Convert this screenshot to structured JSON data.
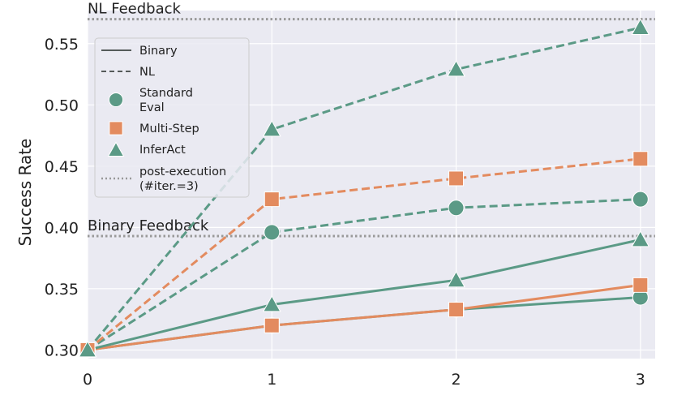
{
  "chart_data": {
    "type": "line",
    "ylabel": "Success Rate",
    "xlabel": "",
    "x": [
      0,
      1,
      2,
      3
    ],
    "xticks": [
      "0",
      "1",
      "2",
      "3"
    ],
    "xlim": [
      0,
      3.08
    ],
    "ylim": [
      0.293,
      0.577
    ],
    "yticks": [
      0.3,
      0.35,
      0.4,
      0.45,
      0.5,
      0.55
    ],
    "ytick_labels": [
      "0.30",
      "0.35",
      "0.40",
      "0.45",
      "0.50",
      "0.55"
    ],
    "grid": true,
    "legend_position": "top-left",
    "colors": {
      "green": "#5b9a86",
      "orange": "#e38b5f",
      "reference": "#999999",
      "background": "#eaeaf2"
    },
    "series": [
      {
        "method": "Standard Eval",
        "feedback": "Binary",
        "marker": "circle",
        "color": "#5b9a86",
        "style": "solid",
        "values": [
          0.3,
          0.32,
          0.333,
          0.343
        ]
      },
      {
        "method": "Multi-Step",
        "feedback": "Binary",
        "marker": "square",
        "color": "#e38b5f",
        "style": "solid",
        "values": [
          0.3,
          0.32,
          0.333,
          0.353
        ]
      },
      {
        "method": "InferAct",
        "feedback": "Binary",
        "marker": "triangle",
        "color": "#5b9a86",
        "style": "solid",
        "values": [
          0.3,
          0.337,
          0.357,
          0.39
        ]
      },
      {
        "method": "Standard Eval",
        "feedback": "NL",
        "marker": "circle",
        "color": "#5b9a86",
        "style": "dashed",
        "values": [
          0.3,
          0.396,
          0.416,
          0.423
        ]
      },
      {
        "method": "Multi-Step",
        "feedback": "NL",
        "marker": "square",
        "color": "#e38b5f",
        "style": "dashed",
        "values": [
          0.3,
          0.423,
          0.44,
          0.456
        ]
      },
      {
        "method": "InferAct",
        "feedback": "NL",
        "marker": "triangle",
        "color": "#5b9a86",
        "style": "dashed",
        "values": [
          0.3,
          0.48,
          0.529,
          0.563
        ]
      }
    ],
    "reference_lines": [
      {
        "label": "NL Feedback",
        "y": 0.57
      },
      {
        "label": "Binary Feedback",
        "y": 0.393
      }
    ],
    "legend": [
      {
        "label": "Binary",
        "kind": "solid-line"
      },
      {
        "label": "NL",
        "kind": "dashed-line"
      },
      {
        "label": "Standard\nEval",
        "kind": "circle"
      },
      {
        "label": "Multi-Step",
        "kind": "square"
      },
      {
        "label": "InferAct",
        "kind": "triangle"
      },
      {
        "label": "post-execution\n(#iter.=3)",
        "kind": "dotted-line"
      }
    ]
  }
}
